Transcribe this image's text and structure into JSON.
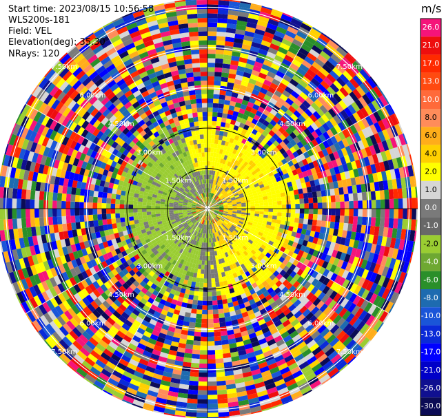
{
  "header": {
    "start_time": "Start time: 2023/08/15 10:56:58",
    "instrument": "WLS200s-181",
    "field": "Field: VEL",
    "elevation": "Elevation(deg): 35.30",
    "nrays": "NRays: 120"
  },
  "colorbar": {
    "unit": "m/s",
    "levels": [
      "26.0",
      "21.0",
      "17.0",
      "13.0",
      "10.0",
      "8.0",
      "6.0",
      "4.0",
      "2.0",
      "1.0",
      "0.0",
      "-1.0",
      "-2.0",
      "-4.0",
      "-6.0",
      "-8.0",
      "-10.0",
      "-13.0",
      "-17.0",
      "-21.0",
      "-26.0",
      "-30.0"
    ],
    "colors": [
      "#f5147a",
      "#ee0e0e",
      "#ff2a00",
      "#ff4a10",
      "#ff6a3a",
      "#ff8c5a",
      "#ffad1a",
      "#ffd000",
      "#ffff00",
      "#d6d6d6",
      "#7a7a7a",
      "#686868",
      "#9acd32",
      "#6ea832",
      "#2a8f2a",
      "#1e6bb0",
      "#1a55d8",
      "#0a2ad8",
      "#0000ff",
      "#0000c8",
      "#101090",
      "#0b0b55"
    ]
  },
  "chart_data": {
    "type": "heatmap",
    "subtype": "radar-ppi",
    "field": "VEL",
    "unit": "m/s",
    "nrays": 120,
    "elevation_deg": 35.3,
    "range_rings_km": [
      "1.50km",
      "1.50km",
      "3.00km",
      "3.00km",
      "4.50km",
      "4.50km",
      "6.00km",
      "6.00km",
      "7.50km",
      "7.50km"
    ],
    "range_rings_values_km": [
      1.5,
      3.0,
      4.5,
      6.0,
      7.5
    ],
    "color_levels": [
      -30,
      -26,
      -21,
      -17,
      -13,
      -10,
      -8,
      -6,
      -4,
      -2,
      -1,
      0,
      1,
      2,
      4,
      6,
      8,
      10,
      13,
      17,
      21,
      26
    ],
    "description_zones": [
      {
        "range_km": [
          0,
          0.8
        ],
        "dominant": "mixed"
      },
      {
        "range_km": [
          0.8,
          3.2
        ],
        "dominant_west": "-2.0",
        "dominant_east": "2.0"
      },
      {
        "range_km": [
          3.2,
          9.0
        ],
        "dominant": "noise"
      }
    ]
  }
}
